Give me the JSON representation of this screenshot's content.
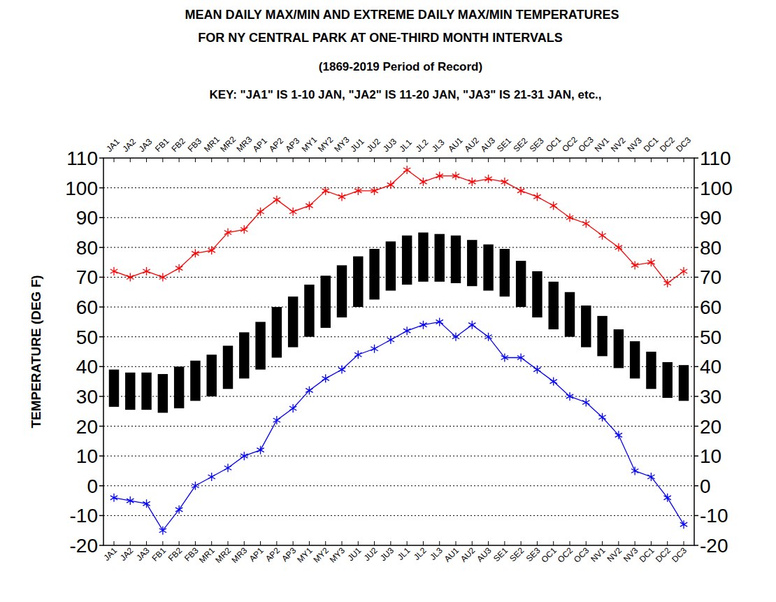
{
  "chart_data": {
    "type": "line",
    "title": [
      "MEAN DAILY MAX/MIN AND EXTREME DAILY MAX/MIN TEMPERATURES",
      "FOR NY CENTRAL PARK AT ONE-THIRD MONTH INTERVALS"
    ],
    "subtitle": "(1869-2019 Period of Record)",
    "annotation": "KEY: \"JA1\" IS 1-10 JAN, \"JA2\" IS 11-20 JAN, \"JA3\" IS 21-31 JAN, etc.,",
    "y_label": "TEMPERATURE (DEG F)",
    "categories": [
      "JA1",
      "JA2",
      "JA3",
      "FB1",
      "FB2",
      "FB3",
      "MR1",
      "MR2",
      "MR3",
      "AP1",
      "AP2",
      "AP3",
      "MY1",
      "MY2",
      "MY3",
      "JU1",
      "JU2",
      "JU3",
      "JL1",
      "JL2",
      "JL3",
      "AU1",
      "AU2",
      "AU3",
      "SE1",
      "SE2",
      "SE3",
      "OC1",
      "OC2",
      "OC3",
      "NV1",
      "NV2",
      "NV3",
      "DC1",
      "DC2",
      "DC3"
    ],
    "ylim": [
      -20,
      110
    ],
    "yticks": [
      -20,
      -10,
      0,
      10,
      20,
      30,
      40,
      50,
      60,
      70,
      80,
      90,
      100,
      110
    ],
    "grid": true,
    "series": [
      {
        "type": "line",
        "color": "#ff0000",
        "marker": "asterisk",
        "values": [
          72,
          70,
          72,
          70,
          73,
          78,
          79,
          85,
          86,
          92,
          96,
          92,
          94,
          99,
          97,
          99,
          99,
          101,
          106,
          102,
          104,
          104,
          102,
          103,
          102,
          99,
          97,
          94,
          90,
          88,
          84,
          80,
          74,
          75,
          68,
          72
        ]
      },
      {
        "type": "line",
        "color": "#0000ff",
        "marker": "asterisk",
        "values": [
          -4,
          -5,
          -6,
          -15,
          -8,
          0,
          3,
          6,
          10,
          12,
          22,
          26,
          32,
          36,
          39,
          44,
          46,
          49,
          52,
          54,
          55,
          50,
          54,
          50,
          43,
          43,
          39,
          35,
          30,
          28,
          23,
          17,
          5,
          3,
          -4,
          -13
        ]
      },
      {
        "type": "bar",
        "color": "#000000",
        "values": [
          39,
          38,
          38,
          37.5,
          40,
          42,
          44,
          47,
          51.5,
          55,
          60,
          63.5,
          67.5,
          70.5,
          74,
          77,
          79.5,
          82,
          84,
          85,
          84.5,
          84,
          82.5,
          81,
          79.5,
          75.5,
          72,
          68.5,
          65,
          60.5,
          57,
          52.5,
          48.5,
          45,
          41.5,
          40.5
        ],
        "low": [
          26.5,
          25.5,
          25.5,
          24.5,
          26,
          28.5,
          30,
          32.5,
          36,
          39,
          43,
          46.5,
          50,
          53,
          56.5,
          60,
          62.5,
          65.5,
          67.5,
          68.5,
          68.5,
          68,
          67,
          65.5,
          63.5,
          60,
          56.5,
          52.5,
          50,
          46.5,
          43.5,
          39.5,
          36,
          32.5,
          29.5,
          28.5
        ]
      }
    ]
  }
}
